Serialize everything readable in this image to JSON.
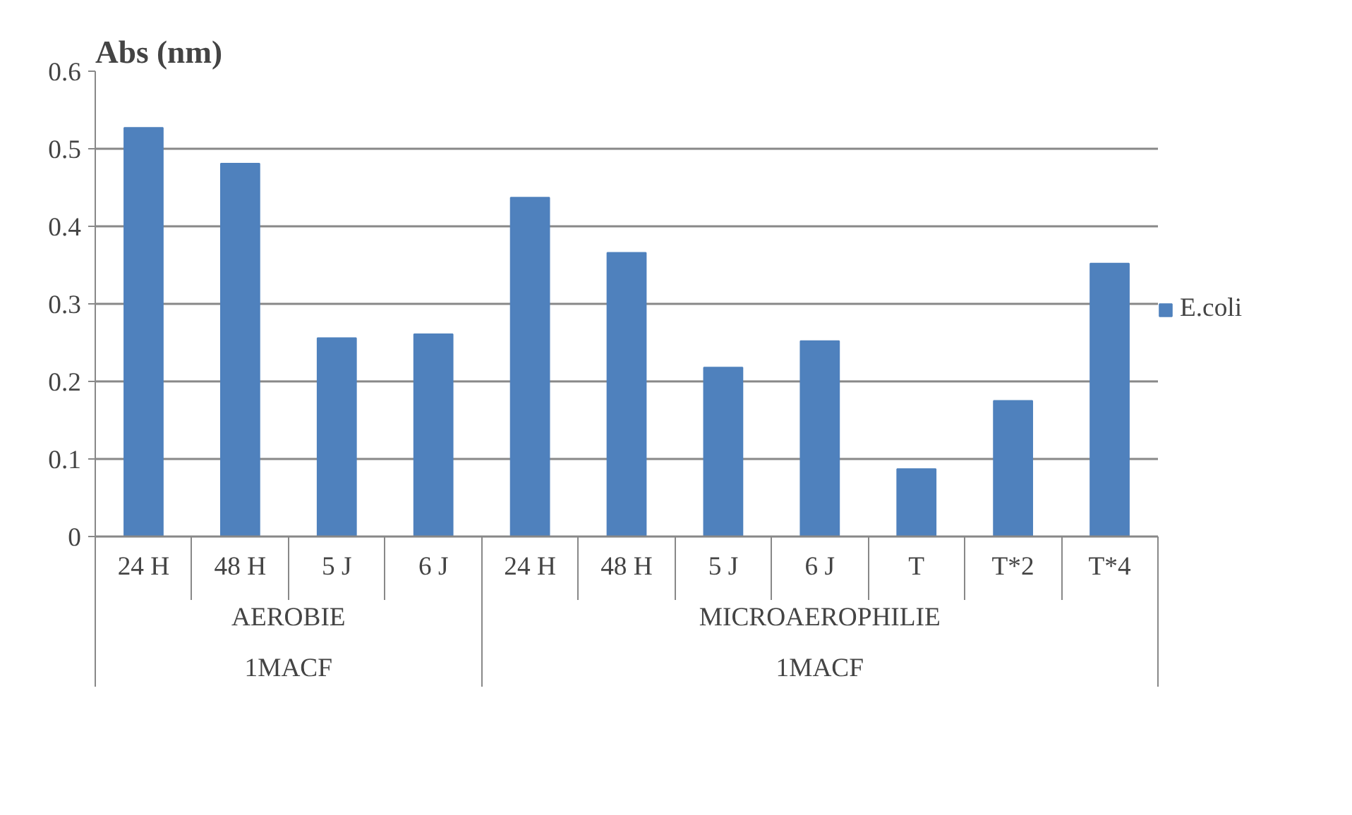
{
  "chart_data": {
    "type": "bar",
    "ylabel": "Abs (nm)",
    "categories": [
      "24 H",
      "48 H",
      "5 J",
      "6 J",
      "24 H",
      "48 H",
      "5 J",
      "6 J",
      "T",
      "T*2",
      "T*4"
    ],
    "series": [
      {
        "name": "E.coli",
        "color": "#4f81bd",
        "values": [
          0.527,
          0.481,
          0.256,
          0.261,
          0.437,
          0.366,
          0.218,
          0.252,
          0.087,
          0.175,
          0.352
        ]
      }
    ],
    "annotations": [
      "AEROBIE",
      "MICROAEROPHILIE",
      "1MACF",
      "1MACF"
    ],
    "ylim": [
      0,
      0.6
    ],
    "yticks": [
      {
        "value": 0,
        "label": "0"
      },
      0.1,
      0.2,
      0.3,
      0.4,
      0.5,
      0.6
    ],
    "grid": "y",
    "legend": "right"
  }
}
